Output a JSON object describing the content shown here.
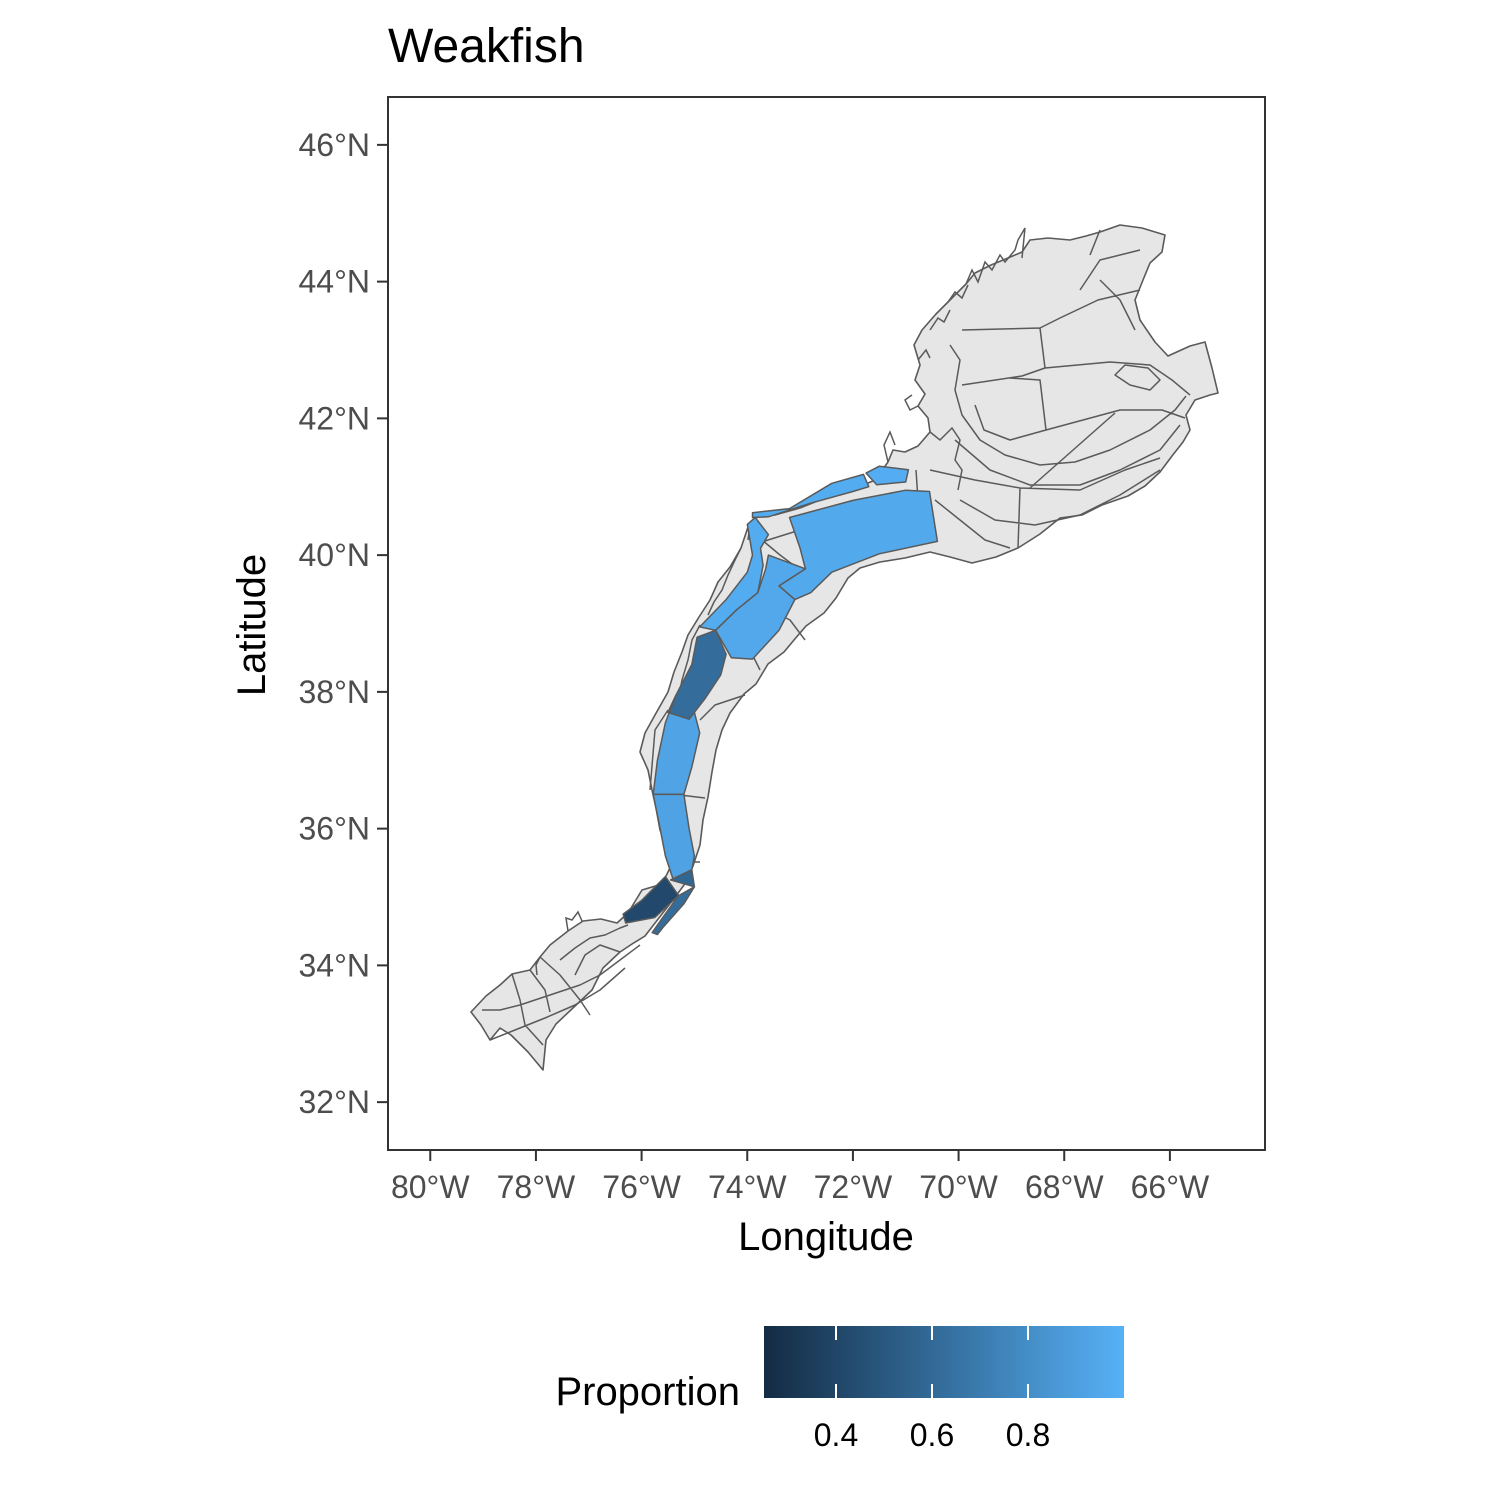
{
  "title": "Weakfish",
  "x_axis": {
    "label": "Longitude",
    "ticks": [
      {
        "value": -80,
        "label": "80°W"
      },
      {
        "value": -78,
        "label": "78°W"
      },
      {
        "value": -76,
        "label": "76°W"
      },
      {
        "value": -74,
        "label": "74°W"
      },
      {
        "value": -72,
        "label": "72°W"
      },
      {
        "value": -70,
        "label": "70°W"
      },
      {
        "value": -68,
        "label": "68°W"
      },
      {
        "value": -66,
        "label": "66°W"
      }
    ]
  },
  "y_axis": {
    "label": "Latitude",
    "ticks": [
      {
        "value": 32,
        "label": "32°N"
      },
      {
        "value": 34,
        "label": "34°N"
      },
      {
        "value": 36,
        "label": "36°N"
      },
      {
        "value": 38,
        "label": "38°N"
      },
      {
        "value": 40,
        "label": "40°N"
      },
      {
        "value": 42,
        "label": "42°N"
      },
      {
        "value": 44,
        "label": "44°N"
      },
      {
        "value": 46,
        "label": "46°N"
      }
    ]
  },
  "legend": {
    "title": "Proportion",
    "position": "bottom",
    "range": [
      0.25,
      1.0
    ],
    "colors": [
      "#132B43",
      "#56B1F7"
    ],
    "ticks": [
      {
        "value": 0.4,
        "label": "0.4"
      },
      {
        "value": 0.6,
        "label": "0.6"
      },
      {
        "value": 0.8,
        "label": "0.8"
      }
    ]
  },
  "colors": {
    "land_fill": "#E6E6E6",
    "outline": "#5A5A5A",
    "panel_border": "#333333"
  },
  "chart_data": {
    "type": "choropleth-map",
    "xlim": [
      -80.8,
      -64.2
    ],
    "ylim": [
      31.3,
      46.7
    ],
    "grid": false,
    "regions": [
      {
        "id": "long-island-south-inshore",
        "proportion": 0.97,
        "outline": [
          [
            -72.0,
            40.93
          ],
          [
            -71.7,
            41.0
          ],
          [
            -71.8,
            41.18
          ],
          [
            -72.4,
            41.05
          ],
          [
            -73.2,
            40.68
          ],
          [
            -73.9,
            40.62
          ],
          [
            -73.9,
            40.55
          ],
          [
            -73.6,
            40.56
          ],
          [
            -72.8,
            40.76
          ]
        ]
      },
      {
        "id": "li-sound-mouth",
        "proportion": 0.98,
        "outline": [
          [
            -71.55,
            41.03
          ],
          [
            -71.0,
            41.07
          ],
          [
            -70.95,
            41.25
          ],
          [
            -71.5,
            41.3
          ],
          [
            -71.75,
            41.2
          ]
        ]
      },
      {
        "id": "southern-new-england-shelf",
        "proportion": 0.96,
        "outline": [
          [
            -73.2,
            40.55
          ],
          [
            -72.0,
            40.8
          ],
          [
            -71.0,
            40.95
          ],
          [
            -70.55,
            40.93
          ],
          [
            -70.4,
            40.2
          ],
          [
            -71.5,
            40.02
          ],
          [
            -72.4,
            39.75
          ],
          [
            -72.8,
            39.45
          ],
          [
            -73.1,
            39.35
          ],
          [
            -73.4,
            39.55
          ],
          [
            -72.9,
            39.8
          ],
          [
            -73.0,
            40.1
          ]
        ]
      },
      {
        "id": "new-jersey-inshore",
        "proportion": 0.97,
        "outline": [
          [
            -74.0,
            40.45
          ],
          [
            -73.9,
            40.0
          ],
          [
            -74.0,
            39.75
          ],
          [
            -74.4,
            39.35
          ],
          [
            -74.9,
            38.95
          ],
          [
            -74.6,
            38.9
          ],
          [
            -74.2,
            39.2
          ],
          [
            -73.8,
            39.45
          ],
          [
            -73.7,
            39.85
          ],
          [
            -73.75,
            40.1
          ],
          [
            -73.6,
            40.3
          ],
          [
            -73.85,
            40.55
          ]
        ]
      },
      {
        "id": "new-jersey-offshore",
        "proportion": 0.95,
        "outline": [
          [
            -73.6,
            40.0
          ],
          [
            -72.9,
            39.8
          ],
          [
            -73.4,
            39.55
          ],
          [
            -73.1,
            39.35
          ],
          [
            -73.4,
            38.9
          ],
          [
            -73.9,
            38.48
          ],
          [
            -74.3,
            38.5
          ],
          [
            -74.6,
            38.9
          ],
          [
            -74.2,
            39.2
          ],
          [
            -73.8,
            39.45
          ],
          [
            -73.65,
            39.8
          ]
        ]
      },
      {
        "id": "delmarva-inshore",
        "proportion": 0.62,
        "outline": [
          [
            -74.95,
            38.8
          ],
          [
            -75.05,
            38.4
          ],
          [
            -75.35,
            37.95
          ],
          [
            -75.5,
            37.7
          ],
          [
            -75.1,
            37.6
          ],
          [
            -74.8,
            37.9
          ],
          [
            -74.5,
            38.25
          ],
          [
            -74.4,
            38.55
          ],
          [
            -74.6,
            38.9
          ]
        ]
      },
      {
        "id": "virginia-shelf",
        "proportion": 0.93,
        "outline": [
          [
            -75.35,
            37.95
          ],
          [
            -75.55,
            37.55
          ],
          [
            -75.7,
            37.0
          ],
          [
            -75.78,
            36.5
          ],
          [
            -75.5,
            36.5
          ],
          [
            -75.2,
            36.5
          ],
          [
            -75.05,
            36.9
          ],
          [
            -74.9,
            37.4
          ],
          [
            -75.0,
            37.7
          ],
          [
            -75.1,
            37.6
          ],
          [
            -75.5,
            37.7
          ]
        ]
      },
      {
        "id": "north-carolina-north-shelf",
        "proportion": 0.92,
        "outline": [
          [
            -75.78,
            36.5
          ],
          [
            -75.65,
            36.0
          ],
          [
            -75.55,
            35.6
          ],
          [
            -75.4,
            35.25
          ],
          [
            -75.05,
            35.4
          ],
          [
            -75.0,
            35.6
          ],
          [
            -75.1,
            36.0
          ],
          [
            -75.2,
            36.5
          ]
        ]
      },
      {
        "id": "hatteras-block",
        "proportion": 0.58,
        "outline": [
          [
            -75.45,
            35.25
          ],
          [
            -75.05,
            35.4
          ],
          [
            -75.0,
            35.15
          ]
        ]
      },
      {
        "id": "pamlico-sound-south",
        "proportion": 0.42,
        "outline": [
          [
            -75.55,
            35.3
          ],
          [
            -75.3,
            35.02
          ],
          [
            -75.75,
            34.7
          ],
          [
            -76.3,
            34.62
          ],
          [
            -76.35,
            34.75
          ],
          [
            -76.0,
            34.95
          ]
        ]
      },
      {
        "id": "cape-lookout-outer",
        "proportion": 0.62,
        "outline": [
          [
            -75.0,
            35.15
          ],
          [
            -75.2,
            34.9
          ],
          [
            -75.6,
            34.55
          ],
          [
            -75.7,
            34.45
          ],
          [
            -75.8,
            34.48
          ],
          [
            -75.6,
            34.7
          ],
          [
            -75.3,
            35.02
          ]
        ]
      }
    ]
  }
}
